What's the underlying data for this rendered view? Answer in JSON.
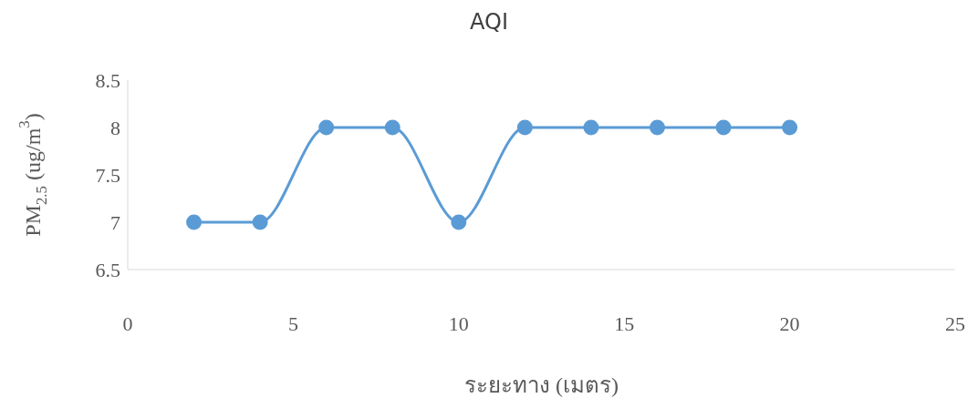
{
  "chart_data": {
    "type": "line",
    "title": "AQI",
    "xlabel": "ระยะทาง (เมตร)",
    "ylabel": "PM$_{2.5}$ (ug/m$^{3}$)",
    "x": [
      2,
      4,
      6,
      8,
      10,
      12,
      14,
      16,
      18,
      20
    ],
    "series": [
      {
        "color": "#5b9bd5",
        "values": [
          7,
          7,
          8,
          8,
          7,
          8,
          8,
          8,
          8,
          8
        ]
      }
    ],
    "xlim": [
      0,
      25
    ],
    "xticks": [
      0,
      5,
      10,
      15,
      20,
      25
    ],
    "ylim": [
      6.5,
      8.5
    ],
    "yticks": [
      6.5,
      7,
      7.5,
      8,
      8.5
    ],
    "grid": false,
    "legend": false,
    "marker": "circle",
    "line_style": "solid"
  }
}
